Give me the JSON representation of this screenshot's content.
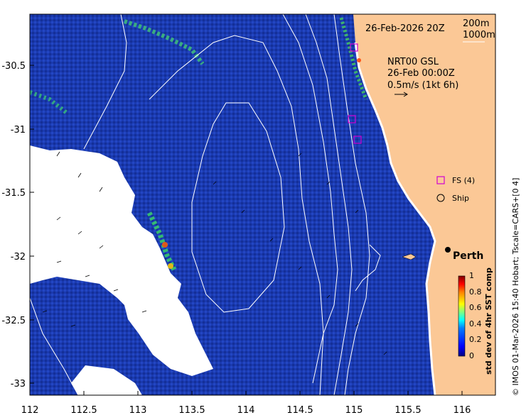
{
  "map": {
    "date_label": "26-Feb-2026 20Z",
    "isobath_labels": [
      "200m",
      "1000m"
    ],
    "current_source": "NRT00 GSL",
    "current_time": "26-Feb 00:00Z",
    "current_scale": "0.5m/s (1kt 6h)",
    "legend": {
      "fs_label": "FS (4)",
      "ship_label": "Ship"
    },
    "city": "Perth",
    "colorbar": {
      "title": "std dev of 4hr SST comp",
      "ticks": [
        "1",
        "0.8",
        "0.6",
        "0.4",
        "0.2",
        "0"
      ],
      "colors": [
        "#800000",
        "#ff0000",
        "#ff8000",
        "#ffff00",
        "#80ff80",
        "#00ffff",
        "#0080ff",
        "#0000ff",
        "#000080"
      ]
    },
    "credit": "© IMOS 01-Mar-2026 15:40 Hobart; Tscale=CARS+[0 4]",
    "x_axis": {
      "labels": [
        "112",
        "112.5",
        "113",
        "113.5",
        "114",
        "114.5",
        "115",
        "115.5",
        "116"
      ]
    },
    "y_axis": {
      "labels": [
        "-30.5",
        "-31",
        "-31.5",
        "-32",
        "-32.5",
        "-33"
      ]
    },
    "colors": {
      "land": "#fbc896",
      "ocean": "#1a3bb0",
      "contour": "#ffffff",
      "fs_marker": "#d000d0"
    }
  }
}
